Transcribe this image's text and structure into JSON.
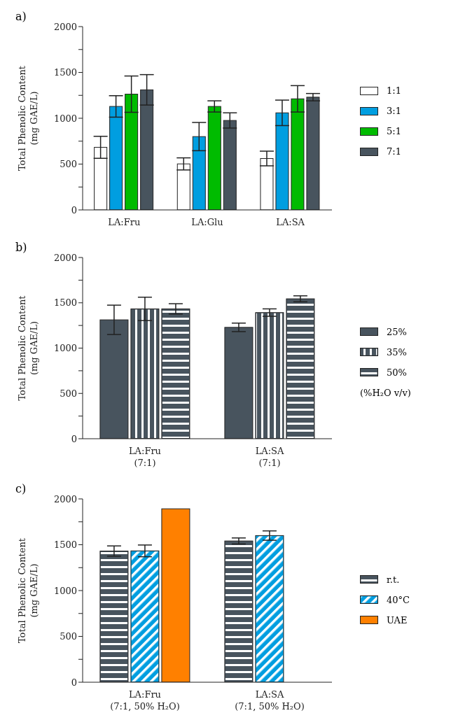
{
  "chart_data": [
    {
      "type": "bar",
      "title": "a)",
      "ylabel": "Total Phenolic Content\n(mg GAE/L)",
      "categories": [
        "LA:Fru",
        "LA:Glu",
        "LA:SA"
      ],
      "ylim": [
        0,
        2000
      ],
      "yticks": [
        0,
        {
          "value": 250,
          "label": null
        },
        500,
        {
          "value": 750,
          "label": null
        },
        1000,
        {
          "value": 1250,
          "label": null
        },
        1500,
        {
          "value": 1750,
          "label": null
        },
        2000
      ],
      "legend": "right",
      "series": [
        {
          "name": "1:1",
          "color": "#ffffff",
          "values": [
            683,
            502,
            561
          ],
          "errors": [
            120,
            66,
            80
          ]
        },
        {
          "name": "3:1",
          "color": "#009ee0",
          "values": [
            1129,
            800,
            1059
          ],
          "errors": [
            117,
            154,
            139
          ]
        },
        {
          "name": "5:1",
          "color": "#00bb00",
          "values": [
            1263,
            1129,
            1212
          ],
          "errors": [
            198,
            61,
            144
          ]
        },
        {
          "name": "7:1",
          "color": "#48545e",
          "values": [
            1310,
            976,
            1230
          ],
          "errors": [
            166,
            83,
            40
          ]
        }
      ]
    },
    {
      "type": "bar",
      "title": "b)",
      "ylabel": "Total Phenolic Content\n(mg GAE/L)",
      "categories": [
        "LA:Fru\n(7:1)",
        "LA:SA\n(7:1)"
      ],
      "ylim": [
        0,
        2000
      ],
      "yticks": [
        0,
        {
          "value": 250,
          "label": null
        },
        500,
        {
          "value": 750,
          "label": null
        },
        1000,
        {
          "value": 1250,
          "label": null
        },
        1500,
        {
          "value": 1750,
          "label": null
        },
        2000
      ],
      "legend": "right",
      "legend_title": "(%H₂O v/v)",
      "series": [
        {
          "name": "25%",
          "color": "#48545e",
          "values": [
            1312,
            1229
          ],
          "errors": [
            162,
            47
          ]
        },
        {
          "name": "35%",
          "color": "#48545e",
          "values": [
            1433,
            1392
          ],
          "errors": [
            129,
            41
          ]
        },
        {
          "name": "50%",
          "color": "#48545e",
          "values": [
            1433,
            1544
          ],
          "errors": [
            57,
            33
          ]
        }
      ]
    },
    {
      "type": "bar",
      "title": "c)",
      "ylabel": "Total Phenolic Content\n(mg GAE/L)",
      "categories": [
        "LA:Fru\n(7:1, 50% H₂O)",
        "LA:SA\n(7:1, 50% H₂O)"
      ],
      "ylim": [
        0,
        2000
      ],
      "yticks": [
        0,
        {
          "value": 250,
          "label": null
        },
        500,
        {
          "value": 750,
          "label": null
        },
        1000,
        {
          "value": 1250,
          "label": null
        },
        1500,
        {
          "value": 1750,
          "label": null
        },
        2000
      ],
      "legend": "right",
      "series": [
        {
          "name": "r.t.",
          "color": "#48545e",
          "values": [
            1431,
            1541
          ],
          "errors": [
            56,
            33
          ]
        },
        {
          "name": "40°C",
          "color": "#009ee0",
          "values": [
            1433,
            1600
          ],
          "errors": [
            64,
            51
          ]
        },
        {
          "name": "UAE",
          "color": "#ff8000",
          "values": [
            1892,
            null
          ],
          "errors": [
            null,
            null
          ]
        }
      ]
    }
  ]
}
